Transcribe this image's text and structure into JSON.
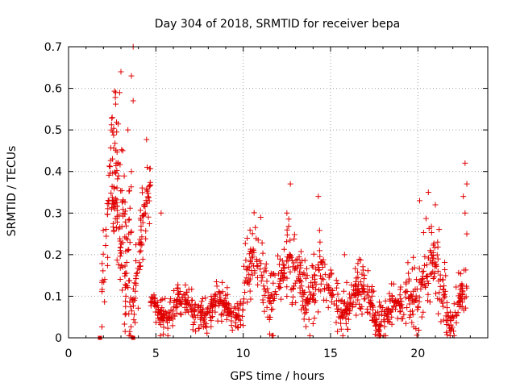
{
  "chart_data": {
    "type": "scatter",
    "title": "Day 304 of 2018, SRMTID for receiver bepa",
    "xlabel": "GPS time / hours",
    "ylabel": "SRMTID / TECUs",
    "xlim": [
      0,
      24
    ],
    "ylim": [
      0,
      0.7
    ],
    "x_ticks": [
      "0",
      "5",
      "10",
      "15",
      "20"
    ],
    "x_tick_values": [
      0,
      5,
      10,
      15,
      20
    ],
    "y_ticks": [
      "0",
      "0.1",
      "0.2",
      "0.3",
      "0.4",
      "0.5",
      "0.6",
      "0.7"
    ],
    "y_tick_values": [
      0,
      0.1,
      0.2,
      0.3,
      0.4,
      0.5,
      0.6,
      0.7
    ],
    "grid": true,
    "series": [
      {
        "name": "SRMTID",
        "color": "#e00000",
        "marker": "plus",
        "segments": [
          {
            "x": [
              1.9,
              4.7
            ],
            "base": 0.2,
            "amp": 0.14,
            "spread": 0.16
          },
          {
            "x": [
              2.3,
              3.6
            ],
            "base": 0.34,
            "amp": 0.12,
            "spread": 0.22
          },
          {
            "x": [
              4.7,
              10.0
            ],
            "base": 0.07,
            "amp": 0.02,
            "spread": 0.06
          },
          {
            "x": [
              10.0,
              14.6
            ],
            "base": 0.14,
            "amp": 0.05,
            "spread": 0.12
          },
          {
            "x": [
              14.6,
              17.5
            ],
            "base": 0.09,
            "amp": 0.03,
            "spread": 0.08
          },
          {
            "x": [
              17.5,
              19.2
            ],
            "base": 0.06,
            "amp": 0.03,
            "spread": 0.07
          },
          {
            "x": [
              19.2,
              21.6
            ],
            "base": 0.14,
            "amp": 0.06,
            "spread": 0.13
          },
          {
            "x": [
              21.6,
              22.8
            ],
            "base": 0.08,
            "amp": 0.04,
            "spread": 0.08
          }
        ],
        "highlights": [
          {
            "x": 3.7,
            "y": 0.7
          },
          {
            "x": 2.7,
            "y": 0.59
          },
          {
            "x": 3.0,
            "y": 0.64
          },
          {
            "x": 3.6,
            "y": 0.63
          },
          {
            "x": 3.7,
            "y": 0.57
          },
          {
            "x": 2.5,
            "y": 0.53
          },
          {
            "x": 3.4,
            "y": 0.5
          },
          {
            "x": 3.1,
            "y": 0.45
          },
          {
            "x": 3.6,
            "y": 0.4
          },
          {
            "x": 4.5,
            "y": 0.41
          },
          {
            "x": 4.4,
            "y": 0.3
          },
          {
            "x": 5.3,
            "y": 0.3
          },
          {
            "x": 12.7,
            "y": 0.37
          },
          {
            "x": 14.3,
            "y": 0.34
          },
          {
            "x": 12.5,
            "y": 0.3
          },
          {
            "x": 11.0,
            "y": 0.29
          },
          {
            "x": 15.8,
            "y": 0.2
          },
          {
            "x": 20.1,
            "y": 0.33
          },
          {
            "x": 20.6,
            "y": 0.35
          },
          {
            "x": 21.0,
            "y": 0.32
          },
          {
            "x": 22.7,
            "y": 0.42
          },
          {
            "x": 22.8,
            "y": 0.37
          },
          {
            "x": 22.6,
            "y": 0.34
          },
          {
            "x": 22.7,
            "y": 0.3
          },
          {
            "x": 22.8,
            "y": 0.25
          }
        ]
      },
      {
        "name": "zero-markers",
        "color": "#e00000",
        "marker": "square",
        "x": [
          1.8,
          3.7
        ],
        "y": [
          0,
          0
        ]
      }
    ]
  }
}
